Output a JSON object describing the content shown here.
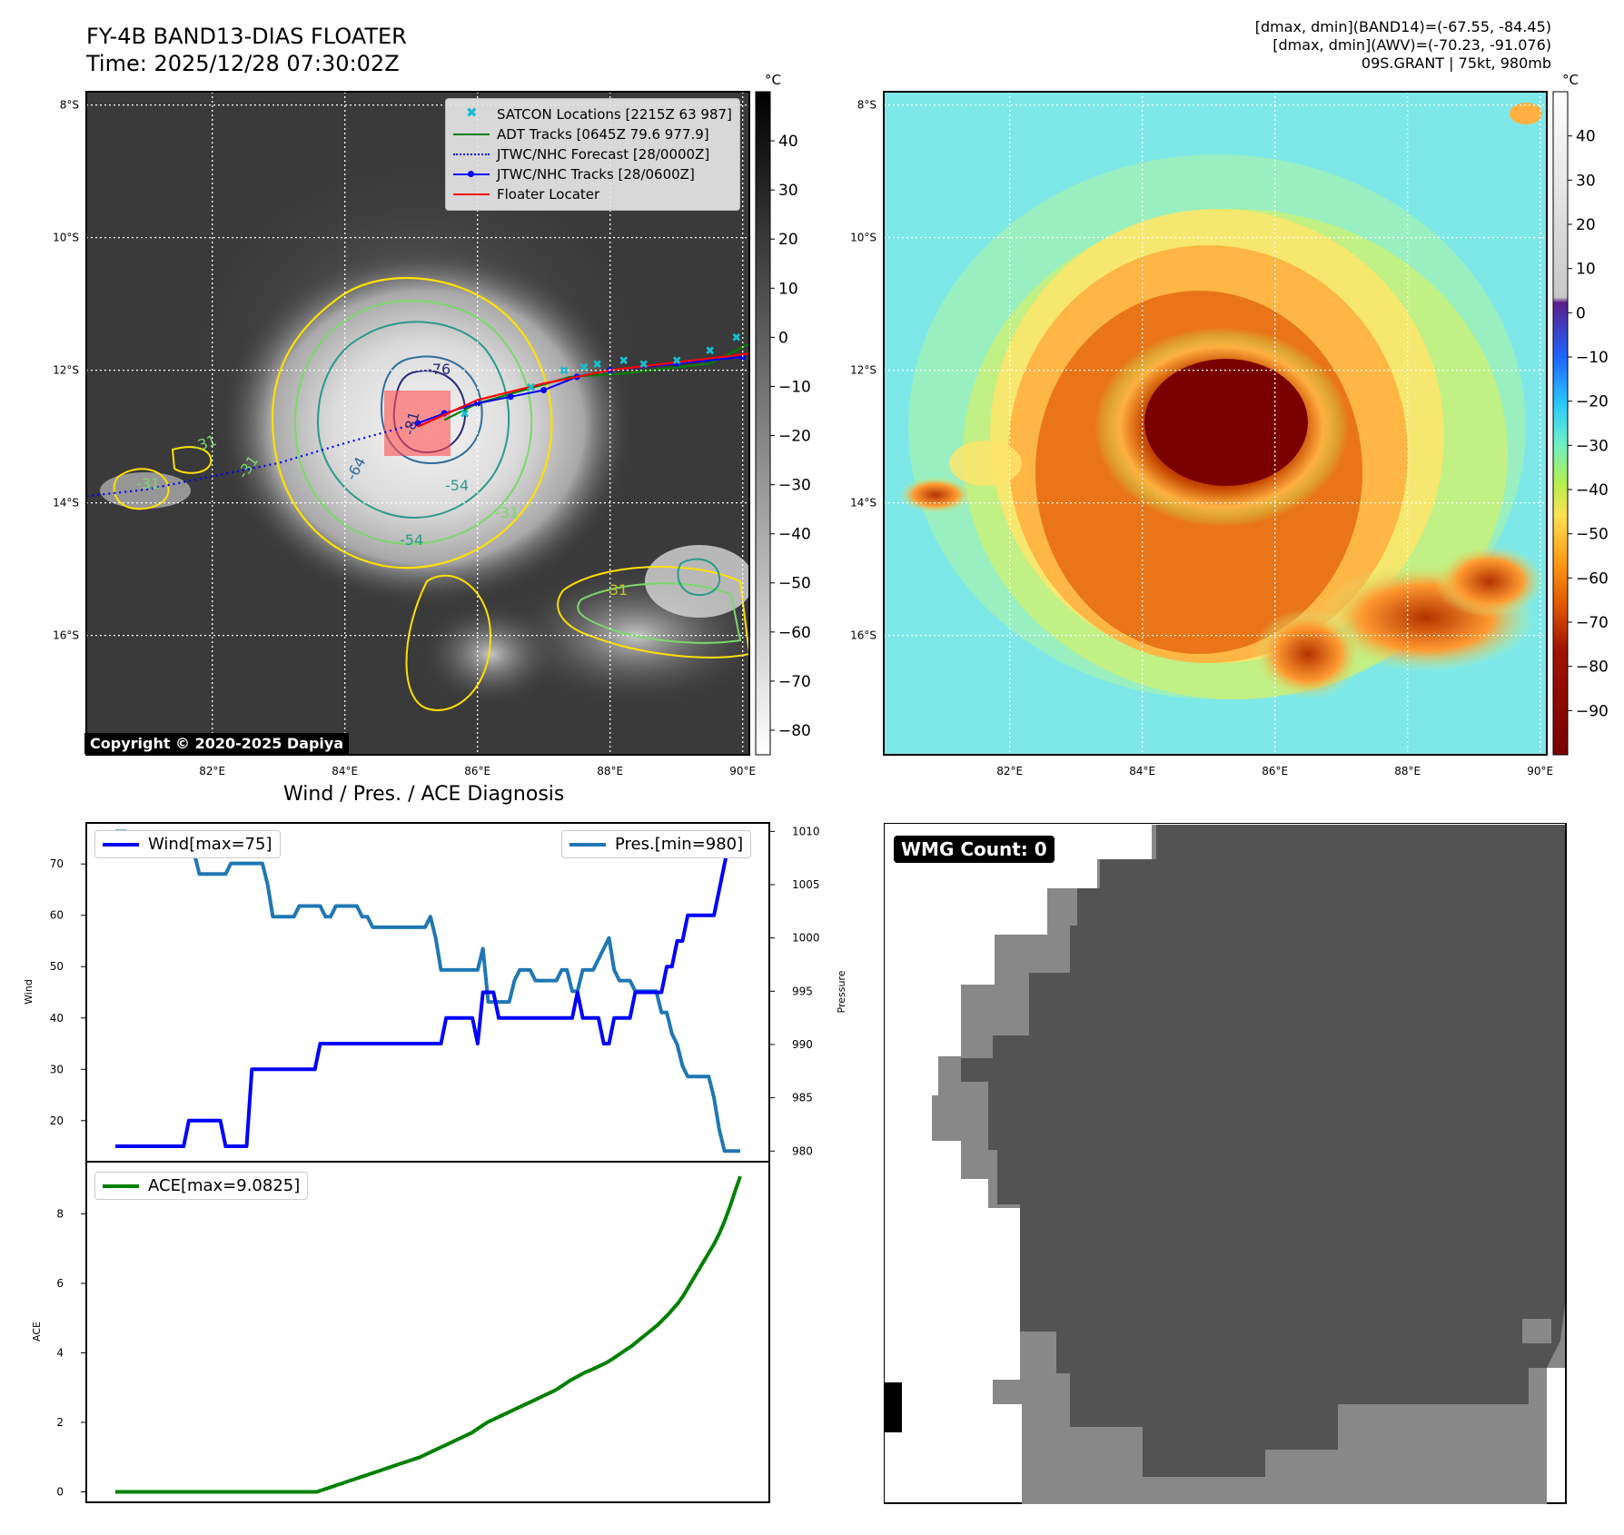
{
  "header": {
    "title_line1": "FY-4B BAND13-DIAS FLOATER",
    "title_line2": "Time: 2025/12/28 07:30:02Z",
    "info_line1": "[dmax, dmin](BAND14)=(-67.55, -84.45)",
    "info_line2": "[dmax, dmin](AWV)=(-70.23, -91.076)",
    "info_line3": "09S.GRANT | 75kt, 980mb"
  },
  "maps": {
    "lat_labels": [
      "8°S",
      "10°S",
      "12°S",
      "14°S",
      "16°S"
    ],
    "lon_labels": [
      "82°E",
      "84°E",
      "86°E",
      "88°E",
      "90°E"
    ],
    "lat_values": [
      -8,
      -10,
      -12,
      -14,
      -16
    ],
    "lon_values": [
      82,
      84,
      86,
      88,
      90
    ],
    "extent": {
      "lon": [
        80.1,
        90.1
      ],
      "lat": [
        -7.8,
        -17.8
      ]
    },
    "copyright": "Copyright © 2020-2025 Dapiya",
    "colorbar_unit": "°C",
    "left_colorbar_ticks": [
      "40",
      "30",
      "20",
      "10",
      "0",
      "−10",
      "−20",
      "−30",
      "−40",
      "−50",
      "−60",
      "−70",
      "−80"
    ],
    "left_colorbar_values": [
      40,
      30,
      20,
      10,
      0,
      -10,
      -20,
      -30,
      -40,
      -50,
      -60,
      -70,
      -80
    ],
    "left_colorbar_range": [
      50,
      -85
    ],
    "right_colorbar_ticks": [
      "40",
      "30",
      "20",
      "10",
      "0",
      "−10",
      "−20",
      "−30",
      "−40",
      "−50",
      "−60",
      "−70",
      "−80",
      "−90"
    ],
    "right_colorbar_values": [
      40,
      30,
      20,
      10,
      0,
      -10,
      -20,
      -30,
      -40,
      -50,
      -60,
      -70,
      -80,
      -90
    ],
    "right_colorbar_range": [
      50,
      -100
    ],
    "contour_labels": [
      "-76",
      "-81",
      "-64",
      "-54",
      "-31",
      "-31",
      "-31",
      "-31",
      "-54",
      "-31"
    ],
    "legend": [
      {
        "label": "SATCON Locations [2215Z 63 987]",
        "symbol": "x",
        "color": "#17becf"
      },
      {
        "label": "ADT Tracks [0645Z 79.6 977.9]",
        "symbol": "line",
        "color": "#008000"
      },
      {
        "label": "JTWC/NHC Forecast [28/0000Z]",
        "symbol": "dotted",
        "color": "#0000ff"
      },
      {
        "label": "JTWC/NHC Tracks [28/0600Z]",
        "symbol": "line-dot",
        "color": "#0000ff"
      },
      {
        "label": "Floater Locater",
        "symbol": "line",
        "color": "#ff0000"
      }
    ],
    "tracks": {
      "jtwc_track": [
        [
          90.0,
          -11.8
        ],
        [
          89.0,
          -11.9
        ],
        [
          88.0,
          -12.0
        ],
        [
          87.5,
          -12.1
        ],
        [
          87.0,
          -12.3
        ],
        [
          86.5,
          -12.4
        ],
        [
          86.0,
          -12.5
        ],
        [
          85.5,
          -12.65
        ],
        [
          85.1,
          -12.8
        ]
      ],
      "jtwc_forecast": [
        [
          85.1,
          -12.8
        ],
        [
          84.0,
          -13.1
        ],
        [
          83.0,
          -13.4
        ],
        [
          82.0,
          -13.6
        ],
        [
          81.0,
          -13.8
        ],
        [
          80.1,
          -13.9
        ]
      ],
      "floater": [
        [
          90.1,
          -11.75
        ],
        [
          88.0,
          -12.0
        ],
        [
          87.0,
          -12.2
        ],
        [
          86.0,
          -12.45
        ],
        [
          85.1,
          -12.85
        ]
      ],
      "adt": [
        [
          90.1,
          -11.6
        ],
        [
          89.5,
          -11.9
        ],
        [
          88.2,
          -12.05
        ],
        [
          87.4,
          -12.1
        ],
        [
          86.7,
          -12.3
        ],
        [
          86.0,
          -12.5
        ],
        [
          85.5,
          -12.75
        ]
      ],
      "satcon": [
        [
          89.9,
          -11.5
        ],
        [
          89.5,
          -11.7
        ],
        [
          89.0,
          -11.85
        ],
        [
          88.5,
          -11.9
        ],
        [
          88.2,
          -11.85
        ],
        [
          87.8,
          -11.9
        ],
        [
          87.6,
          -11.95
        ],
        [
          87.3,
          -12.0
        ],
        [
          86.8,
          -12.25
        ],
        [
          85.8,
          -12.65
        ]
      ]
    }
  },
  "diag": {
    "title": "Wind / Pres. / ACE Diagnosis",
    "wind_ylabel": "Wind",
    "pres_ylabel": "Pressure",
    "ace_ylabel": "ACE",
    "wind_legend": "Wind[max=75]",
    "pres_legend": "Pres.[min=980]",
    "ace_legend": "ACE[max=9.0825]"
  },
  "chart_data": [
    {
      "type": "line",
      "title": "Wind / Pres. / ACE Diagnosis",
      "ylabel": "Wind",
      "y2label": "Pressure",
      "ylim": [
        12,
        78
      ],
      "y2lim": [
        979,
        1010.8
      ],
      "yticks": [
        20,
        30,
        40,
        50,
        60,
        70
      ],
      "y2ticks": [
        980,
        985,
        990,
        995,
        1000,
        1005,
        1010
      ],
      "series": [
        {
          "name": "Wind[max=75]",
          "color": "#0000ff",
          "values": [
            15,
            15,
            15,
            15,
            15,
            15,
            15,
            15,
            15,
            15,
            15,
            15,
            15,
            15,
            20,
            20,
            20,
            20,
            20,
            20,
            20,
            15,
            15,
            15,
            15,
            15,
            30,
            30,
            30,
            30,
            30,
            30,
            30,
            30,
            30,
            30,
            30,
            30,
            30,
            35,
            35,
            35,
            35,
            35,
            35,
            35,
            35,
            35,
            35,
            35,
            35,
            35,
            35,
            35,
            35,
            35,
            35,
            35,
            35,
            35,
            35,
            35,
            35,
            40,
            40,
            40,
            40,
            40,
            40,
            35,
            45,
            45,
            45,
            40,
            40,
            40,
            40,
            40,
            40,
            40,
            40,
            40,
            40,
            40,
            40,
            40,
            40,
            40,
            45,
            40,
            40,
            40,
            40,
            35,
            35,
            40,
            40,
            40,
            40,
            45,
            45,
            45,
            45,
            45,
            45,
            50,
            50,
            55,
            55,
            60,
            60,
            60,
            60,
            60,
            60,
            65,
            70,
            75,
            75,
            75
          ]
        },
        {
          "name": "Pres.[min=980]",
          "color": "#1f77b4",
          "axis": "right",
          "values": [
            1010,
            1010,
            1010,
            1009,
            1008,
            1008,
            1008,
            1008,
            1008,
            1008,
            1008,
            1008,
            1008,
            1008,
            1008,
            1008,
            1006,
            1006,
            1006,
            1006,
            1006,
            1006,
            1007,
            1007,
            1007,
            1007,
            1007,
            1007,
            1007,
            1005,
            1002,
            1002,
            1002,
            1002,
            1002,
            1003,
            1003,
            1003,
            1003,
            1003,
            1002,
            1002,
            1003,
            1003,
            1003,
            1003,
            1003,
            1002,
            1002,
            1001,
            1001,
            1001,
            1001,
            1001,
            1001,
            1001,
            1001,
            1001,
            1001,
            1001,
            1002,
            1000,
            997,
            997,
            997,
            997,
            997,
            997,
            997,
            997,
            999,
            994,
            994,
            994,
            994,
            994,
            996,
            997,
            997,
            997,
            996,
            996,
            996,
            996,
            996,
            997,
            997,
            995,
            995,
            997,
            997,
            997,
            998,
            999,
            1000,
            997,
            996,
            996,
            996,
            995,
            995,
            995,
            995,
            995,
            993,
            993,
            991,
            990,
            988,
            987,
            987,
            987,
            987,
            987,
            985,
            982,
            980,
            980,
            980,
            980
          ]
        }
      ]
    },
    {
      "type": "line",
      "ylabel": "ACE",
      "ylim": [
        -0.3,
        9.5
      ],
      "yticks": [
        0,
        2,
        4,
        6,
        8
      ],
      "series": [
        {
          "name": "ACE[max=9.0825]",
          "color": "#008000",
          "values": [
            0,
            0,
            0,
            0,
            0,
            0,
            0,
            0,
            0,
            0,
            0,
            0,
            0,
            0,
            0,
            0,
            0,
            0,
            0,
            0,
            0,
            0,
            0,
            0,
            0,
            0,
            0,
            0,
            0,
            0,
            0,
            0,
            0,
            0,
            0,
            0,
            0,
            0,
            0,
            0,
            0.05,
            0.1,
            0.15,
            0.2,
            0.25,
            0.3,
            0.35,
            0.4,
            0.45,
            0.5,
            0.55,
            0.6,
            0.65,
            0.7,
            0.75,
            0.8,
            0.85,
            0.9,
            0.95,
            1.0,
            1.07,
            1.14,
            1.21,
            1.28,
            1.35,
            1.42,
            1.49,
            1.56,
            1.63,
            1.7,
            1.8,
            1.9,
            2.0,
            2.07,
            2.14,
            2.21,
            2.28,
            2.35,
            2.42,
            2.49,
            2.56,
            2.63,
            2.7,
            2.77,
            2.84,
            2.91,
            3.0,
            3.1,
            3.2,
            3.28,
            3.36,
            3.44,
            3.5,
            3.57,
            3.64,
            3.71,
            3.8,
            3.9,
            4.0,
            4.1,
            4.2,
            4.32,
            4.44,
            4.56,
            4.68,
            4.8,
            4.95,
            5.1,
            5.27,
            5.44,
            5.65,
            5.9,
            6.15,
            6.4,
            6.65,
            6.9,
            7.15,
            7.45,
            7.8,
            8.2,
            8.65,
            9.08
          ]
        }
      ]
    }
  ],
  "wmg": {
    "label": "WMG Count: 0"
  }
}
